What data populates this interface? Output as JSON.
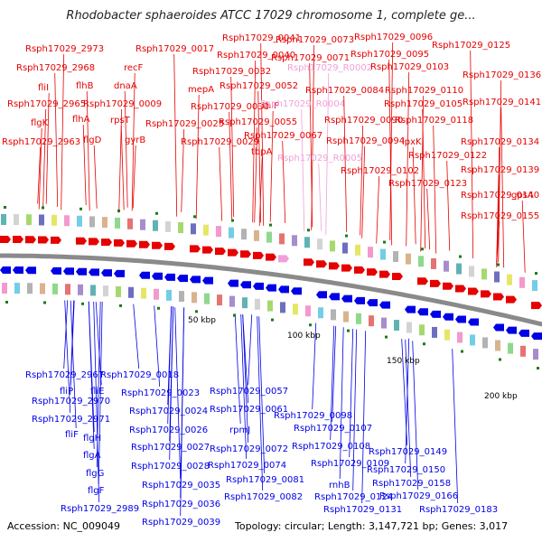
{
  "title": "Rhodobacter sphaeroides ATCC 17029 chromosome 1, complete ge...",
  "accession": "Accession: NC_009049",
  "topology": "Topology: circular; Length: 3,147,721 bp; Genes: 3,017",
  "colors": {
    "forward": "#e60000",
    "reverse": "#0000e6",
    "rna": "#f0a0d8",
    "backbone": "#8a8a8a",
    "tick": "#1a7a1a"
  },
  "scale_labels": [
    "50 kbp",
    "100 kbp",
    "150 kbp",
    "200 kbp"
  ],
  "top_labels": [
    {
      "text": "Rsph17029_2973",
      "color": "red"
    },
    {
      "text": "Rsph17029_2968",
      "color": "red"
    },
    {
      "text": "fliI",
      "color": "red"
    },
    {
      "text": "flhB",
      "color": "red"
    },
    {
      "text": "Rsph17029_2965",
      "color": "red"
    },
    {
      "text": "flhA",
      "color": "red"
    },
    {
      "text": "flgK",
      "color": "red"
    },
    {
      "text": "flgD",
      "color": "red"
    },
    {
      "text": "Rsph17029_2963",
      "color": "red"
    },
    {
      "text": "Rsph17029_0017",
      "color": "red"
    },
    {
      "text": "recF",
      "color": "red"
    },
    {
      "text": "dnaA",
      "color": "red"
    },
    {
      "text": "Rsph17029_0009",
      "color": "red"
    },
    {
      "text": "rpsT",
      "color": "red"
    },
    {
      "text": "gyrB",
      "color": "red"
    },
    {
      "text": "Rsph17029_0041",
      "color": "red"
    },
    {
      "text": "Rsph17029_0040",
      "color": "red"
    },
    {
      "text": "Rsph17029_0032",
      "color": "red"
    },
    {
      "text": "mepA",
      "color": "red"
    },
    {
      "text": "Rsph17029_0030",
      "color": "red"
    },
    {
      "text": "Rsph17029_0025",
      "color": "red"
    },
    {
      "text": "Rsph17029_0029",
      "color": "red"
    },
    {
      "text": "Rsph17029_0073",
      "color": "red"
    },
    {
      "text": "Rsph17029_0071",
      "color": "red"
    },
    {
      "text": "Rsph17029_R0002",
      "color": "pink"
    },
    {
      "text": "Rsph17029_0052",
      "color": "red"
    },
    {
      "text": "thiP",
      "color": "red"
    },
    {
      "text": "Rsph17029_R0004",
      "color": "pink"
    },
    {
      "text": "Rsph17029_0055",
      "color": "red"
    },
    {
      "text": "Rsph17029_0067",
      "color": "red"
    },
    {
      "text": "tbpA",
      "color": "red"
    },
    {
      "text": "Rsph17029_R0005",
      "color": "pink"
    },
    {
      "text": "Rsph17029_0096",
      "color": "red"
    },
    {
      "text": "Rsph17029_0095",
      "color": "red"
    },
    {
      "text": "Rsph17029_0103",
      "color": "red"
    },
    {
      "text": "Rsph17029_0084",
      "color": "red"
    },
    {
      "text": "Rsph17029_0110",
      "color": "red"
    },
    {
      "text": "Rsph17029_0105",
      "color": "red"
    },
    {
      "text": "Rsph17029_0090",
      "color": "red"
    },
    {
      "text": "Rsph17029_0118",
      "color": "red"
    },
    {
      "text": "Rsph17029_0094",
      "color": "red"
    },
    {
      "text": "lpxK",
      "color": "red"
    },
    {
      "text": "Rsph17029_0102",
      "color": "red"
    },
    {
      "text": "Rsph17029_0125",
      "color": "red"
    },
    {
      "text": "Rsph17029_0136",
      "color": "red"
    },
    {
      "text": "Rsph17029_0141",
      "color": "red"
    },
    {
      "text": "Rsph17029_0134",
      "color": "red"
    },
    {
      "text": "Rsph17029_0122",
      "color": "red"
    },
    {
      "text": "Rsph17029_0139",
      "color": "red"
    },
    {
      "text": "Rsph17029_0123",
      "color": "red"
    },
    {
      "text": "Rsph17029_0140",
      "color": "red"
    },
    {
      "text": "gpsA",
      "color": "red"
    },
    {
      "text": "Rsph17029_0155",
      "color": "red"
    }
  ],
  "bottom_labels": [
    {
      "text": "Rsph17029_2967"
    },
    {
      "text": "Rsph17029_0018"
    },
    {
      "text": "fliP"
    },
    {
      "text": "fliE"
    },
    {
      "text": "Rsph17029_2970"
    },
    {
      "text": "Rsph17029_0023"
    },
    {
      "text": "Rsph17029_0057"
    },
    {
      "text": "Rsph17029_2971"
    },
    {
      "text": "Rsph17029_0024"
    },
    {
      "text": "Rsph17029_0061"
    },
    {
      "text": "Rsph17029_0098"
    },
    {
      "text": "fliF"
    },
    {
      "text": "Rsph17029_0026"
    },
    {
      "text": "rpmJ"
    },
    {
      "text": "Rsph17029_0107"
    },
    {
      "text": "flgH"
    },
    {
      "text": "Rsph17029_0027"
    },
    {
      "text": "Rsph17029_0072"
    },
    {
      "text": "Rsph17029_0108"
    },
    {
      "text": "flgA"
    },
    {
      "text": "Rsph17029_0028"
    },
    {
      "text": "Rsph17029_0074"
    },
    {
      "text": "Rsph17029_0109"
    },
    {
      "text": "Rsph17029_0149"
    },
    {
      "text": "flgG"
    },
    {
      "text": "Rsph17029_0081"
    },
    {
      "text": "Rsph17029_0150"
    },
    {
      "text": "Rsph17029_0035"
    },
    {
      "text": "rnhB"
    },
    {
      "text": "Rsph17029_0158"
    },
    {
      "text": "flgF"
    },
    {
      "text": "Rsph17029_0082"
    },
    {
      "text": "Rsph17029_0124"
    },
    {
      "text": "Rsph17029_0166"
    },
    {
      "text": "Rsph17029_0036"
    },
    {
      "text": "Rsph17029_2989"
    },
    {
      "text": "Rsph17029_0131"
    },
    {
      "text": "Rsph17029_0183"
    },
    {
      "text": "Rsph17029_0039"
    }
  ]
}
